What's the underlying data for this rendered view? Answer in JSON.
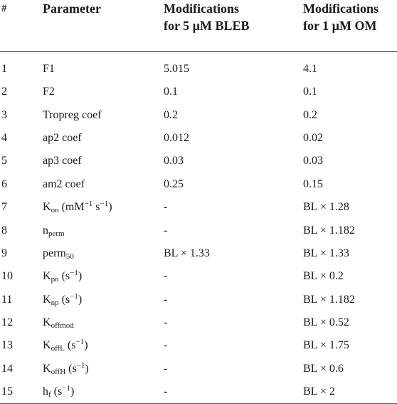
{
  "header": {
    "num": "#",
    "parameter": "Parameter",
    "bleb_line1": "Modifications",
    "bleb_line2": "for 5 µM BLEB",
    "om_line1": "Modifications",
    "om_line2": "for 1 µM OM"
  },
  "rows": [
    {
      "num": "1",
      "param": "F1",
      "bleb": "5.015",
      "om": "4.1"
    },
    {
      "num": "2",
      "param": "F2",
      "bleb": "0.1",
      "om": "0.1"
    },
    {
      "num": "3",
      "param": "Tropreg coef",
      "bleb": "0.2",
      "om": "0.2"
    },
    {
      "num": "4",
      "param": "ap2 coef",
      "bleb": "0.012",
      "om": "0.02"
    },
    {
      "num": "5",
      "param": "ap3 coef",
      "bleb": "0.03",
      "om": "0.03"
    },
    {
      "num": "6",
      "param": "am2 coef",
      "bleb": "0.25",
      "om": "0.15"
    },
    {
      "num": "7",
      "param_base": "K",
      "param_sub": "on",
      "param_unit_pre": " (mM",
      "param_sup1": "−1",
      "param_unit_mid": " s",
      "param_sup2": "−1",
      "param_unit_post": ")",
      "bleb": "-",
      "om": "BL × 1.28"
    },
    {
      "num": "8",
      "param_base": "n",
      "param_sub": "perm",
      "bleb": "-",
      "om": "BL × 1.182"
    },
    {
      "num": "9",
      "param_base": "perm",
      "param_sub": "50",
      "bleb": "BL × 1.33",
      "om": "BL × 1.33"
    },
    {
      "num": "10",
      "param_base": "K",
      "param_sub": "pn",
      "param_unit_pre": " (s",
      "param_sup1": "−1",
      "param_unit_post": ")",
      "bleb": "-",
      "om": "BL × 0.2"
    },
    {
      "num": "11",
      "param_base": "K",
      "param_sub": "np",
      "param_unit_pre": " (s",
      "param_sup1": "−1",
      "param_unit_post": ")",
      "bleb": "-",
      "om": "BL × 1.182"
    },
    {
      "num": "12",
      "param_base": "K",
      "param_sub": "offmod",
      "bleb": "-",
      "om": "BL × 0.52"
    },
    {
      "num": "13",
      "param_base": "K",
      "param_sub": "offL",
      "param_unit_pre": " (s",
      "param_sup1": "−1",
      "param_unit_post": ")",
      "bleb": "-",
      "om": "BL × 1.75"
    },
    {
      "num": "14",
      "param_base": "K",
      "param_sub": "offH",
      "param_unit_pre": " (s",
      "param_sup1": "−1",
      "param_unit_post": ")",
      "bleb": "-",
      "om": "BL × 0.6"
    },
    {
      "num": "15",
      "param_base": "h",
      "param_sub": "f",
      "param_unit_pre": " (s",
      "param_sup1": "−1",
      "param_unit_post": ")",
      "bleb": "-",
      "om": "BL × 2"
    }
  ]
}
